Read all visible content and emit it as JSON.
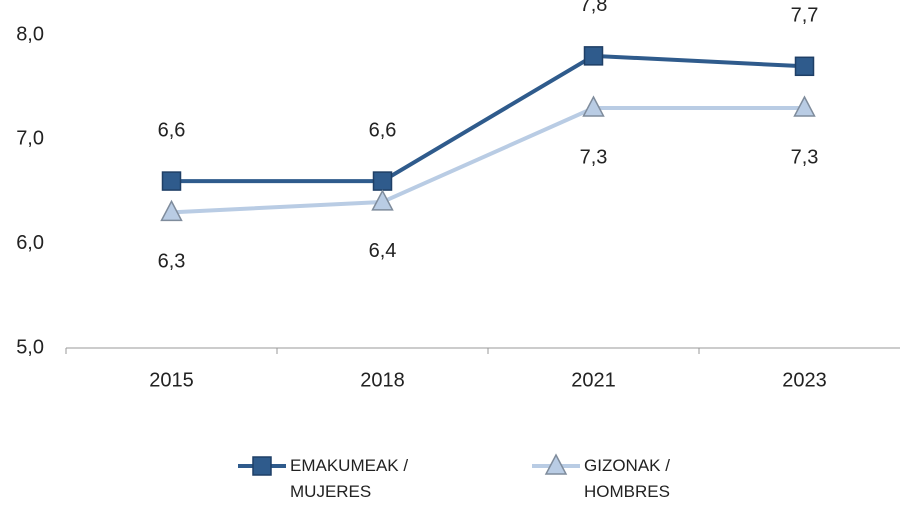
{
  "chart_data": {
    "type": "line",
    "categories": [
      "2015",
      "2018",
      "2021",
      "2023"
    ],
    "series": [
      {
        "name": "EMAKUMEAK / MUJERES",
        "color": "#2f5b8c",
        "marker": "square",
        "values": [
          6.6,
          6.6,
          7.8,
          7.7
        ],
        "value_labels": [
          "6,6",
          "6,6",
          "7,8",
          "7,7"
        ]
      },
      {
        "name": "GIZONAK / HOMBRES",
        "color": "#b9cce4",
        "marker": "triangle",
        "values": [
          6.3,
          6.4,
          7.3,
          7.3
        ],
        "value_labels": [
          "6,3",
          "6,4",
          "7,3",
          "7,3"
        ]
      }
    ],
    "ylim": [
      5,
      8
    ],
    "yticks": [
      {
        "value": 5,
        "label": "5,0"
      },
      {
        "value": 6,
        "label": "6,0"
      },
      {
        "value": 7,
        "label": "7,0"
      },
      {
        "value": 8,
        "label": "8,0"
      }
    ],
    "grid": false,
    "legend": "bottom"
  }
}
